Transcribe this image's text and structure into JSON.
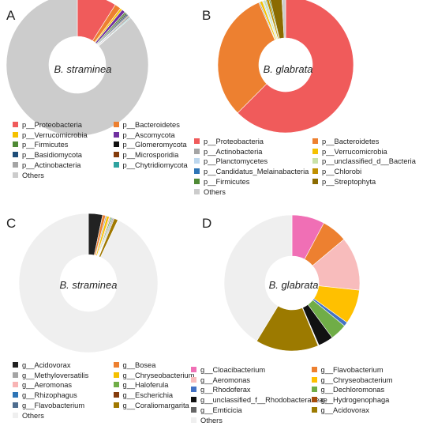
{
  "chart_data": [
    {
      "panel": "A",
      "type": "pie",
      "center_label": "B. straminea",
      "labels": [
        "p__Proteobacteria",
        "p__Bacteroidetes",
        "p__Verrucomicrobia",
        "p__Ascomycota",
        "p__Firmicutes",
        "p__Glomeromycota",
        "p__Basidiomycota",
        "p__Microsporidia",
        "p__Actinobacteria",
        "p__Chytridiomycota",
        "Others"
      ],
      "colors": [
        "#f05b5b",
        "#ed8030",
        "#f5c100",
        "#7030a0",
        "#4f8a35",
        "#111111",
        "#1f4e79",
        "#843c0c",
        "#a5a5a5",
        "#2fa3a0",
        "#cccccc"
      ],
      "values": [
        9.0,
        1.4,
        0.5,
        0.8,
        0.4,
        0.3,
        0.3,
        0.2,
        0.4,
        0.2,
        86.5
      ],
      "legend_columns": 2
    },
    {
      "panel": "B",
      "type": "pie",
      "center_label": "B. glabrata",
      "labels": [
        "p__Proteobacteria",
        "p__Bacteroidetes",
        "p__Actinobacteria",
        "p__Verrucomicrobia",
        "p__Planctomycetes",
        "p__unclassified_d__Bacteria",
        "p__Candidatus_Melainabacteria",
        "p__Chlorobi",
        "p__Firmicutes",
        "p__Streptophyta",
        "Others"
      ],
      "colors": [
        "#f05b5b",
        "#ed8030",
        "#a5a5a5",
        "#f5c100",
        "#bdd7ee",
        "#c9e2a8",
        "#2e75b6",
        "#c09000",
        "#4f8a35",
        "#8b6b00",
        "#cccccc"
      ],
      "values": [
        62.5,
        31.0,
        0.3,
        0.6,
        0.3,
        0.5,
        0.2,
        0.6,
        0.3,
        2.8,
        0.9
      ],
      "legend_columns": 2
    },
    {
      "panel": "C",
      "type": "pie",
      "center_label": "B. straminea",
      "labels": [
        "g__Acidovorax",
        "g__Bosea",
        "g__Methyloversatilis",
        "g__Chryseobacterium",
        "g__Aeromonas",
        "g__Haloferula",
        "g__Rhizophagus",
        "g__Escherichia",
        "g__Flavobacterium",
        "g__Coraliomargarita",
        "Others"
      ],
      "colors": [
        "#222222",
        "#ed8030",
        "#a5a5a5",
        "#f5c100",
        "#f8b4b4",
        "#70ad47",
        "#2e75b6",
        "#843c0c",
        "#4f6d8f",
        "#a07800",
        "#efefef"
      ],
      "values": [
        3.3,
        0.7,
        0.3,
        0.6,
        0.3,
        0.3,
        0.2,
        0.2,
        0.2,
        0.9,
        93.0
      ],
      "legend_columns": 2
    },
    {
      "panel": "D",
      "type": "pie",
      "center_label": "B. glabrata",
      "labels": [
        "g__Cloacibacterium",
        "g__Flavobacterium",
        "g__Aeromonas",
        "g__Chryseobacterium",
        "g__Rhodoferax",
        "g__Dechloromonas",
        "g__unclassified_f__Rhodobacteraceae",
        "g__Hydrogenophaga",
        "g__Emticicia",
        "g__Acidovorax",
        "Others"
      ],
      "colors": [
        "#f06fb5",
        "#ed8030",
        "#f8bcbc",
        "#ffc000",
        "#4472c4",
        "#70ad47",
        "#111111",
        "#a64d0c",
        "#666666",
        "#9c7a00",
        "#efefef"
      ],
      "values": [
        7.8,
        6.1,
        12.8,
        8.2,
        1.0,
        4.0,
        3.6,
        0.1,
        0.1,
        15.0,
        41.3
      ],
      "legend_columns": 2
    }
  ]
}
